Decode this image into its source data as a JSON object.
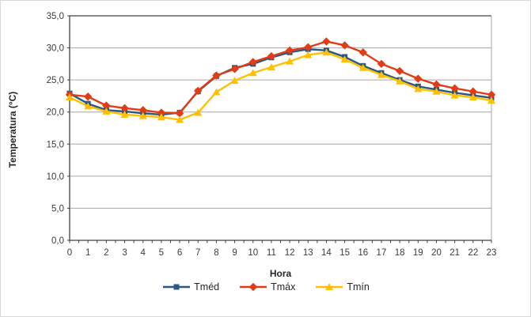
{
  "window": {
    "background": "#FFFFFF",
    "border_color": "#D9D9D9"
  },
  "colors": {
    "gridline": "#A6A6A6",
    "axis": "#404040",
    "plot_border_right": "#A6A6A6",
    "tick_text": "#3B3B3B"
  },
  "chart_data": {
    "type": "line",
    "title": "",
    "xlabel": "Hora",
    "ylabel": "Temperatura (°C)",
    "x": [
      0,
      1,
      2,
      3,
      4,
      5,
      6,
      7,
      8,
      9,
      10,
      11,
      12,
      13,
      14,
      15,
      16,
      17,
      18,
      19,
      20,
      21,
      22,
      23
    ],
    "x_tick_labels": [
      "0",
      "1",
      "2",
      "3",
      "4",
      "5",
      "6",
      "7",
      "8",
      "9",
      "10",
      "11",
      "12",
      "13",
      "14",
      "15",
      "16",
      "17",
      "18",
      "19",
      "20",
      "21",
      "22",
      "23"
    ],
    "ylim": [
      0,
      35
    ],
    "y_ticks": [
      0,
      5,
      10,
      15,
      20,
      25,
      30,
      35
    ],
    "y_tick_labels": [
      "0,0",
      "5,0",
      "10,0",
      "15,0",
      "20,0",
      "25,0",
      "30,0",
      "35,0"
    ],
    "grid": "horizontal",
    "legend_position": "bottom",
    "series": [
      {
        "name": "Tméd",
        "marker": "square",
        "color": "#2A5783",
        "values": [
          22.9,
          21.3,
          20.3,
          20.1,
          19.8,
          19.6,
          19.9,
          23.2,
          25.6,
          26.9,
          27.5,
          28.5,
          29.3,
          29.8,
          29.6,
          28.6,
          27.2,
          26.1,
          25.0,
          24.0,
          23.5,
          23.0,
          22.6,
          22.2
        ]
      },
      {
        "name": "Tmáx",
        "marker": "diamond",
        "color": "#E13C15",
        "values": [
          22.7,
          22.4,
          21.0,
          20.6,
          20.3,
          19.9,
          19.8,
          23.3,
          25.7,
          26.7,
          27.8,
          28.7,
          29.6,
          30.1,
          31.0,
          30.4,
          29.3,
          27.5,
          26.4,
          25.2,
          24.3,
          23.7,
          23.2,
          22.7
        ]
      },
      {
        "name": "Tmín",
        "marker": "triangle",
        "color": "#FFC000",
        "values": [
          22.3,
          20.9,
          20.1,
          19.6,
          19.4,
          19.2,
          18.8,
          19.9,
          23.1,
          24.9,
          26.1,
          27.0,
          27.9,
          28.9,
          29.3,
          28.2,
          26.9,
          25.8,
          24.8,
          23.6,
          23.2,
          22.6,
          22.3,
          21.8
        ]
      }
    ]
  }
}
